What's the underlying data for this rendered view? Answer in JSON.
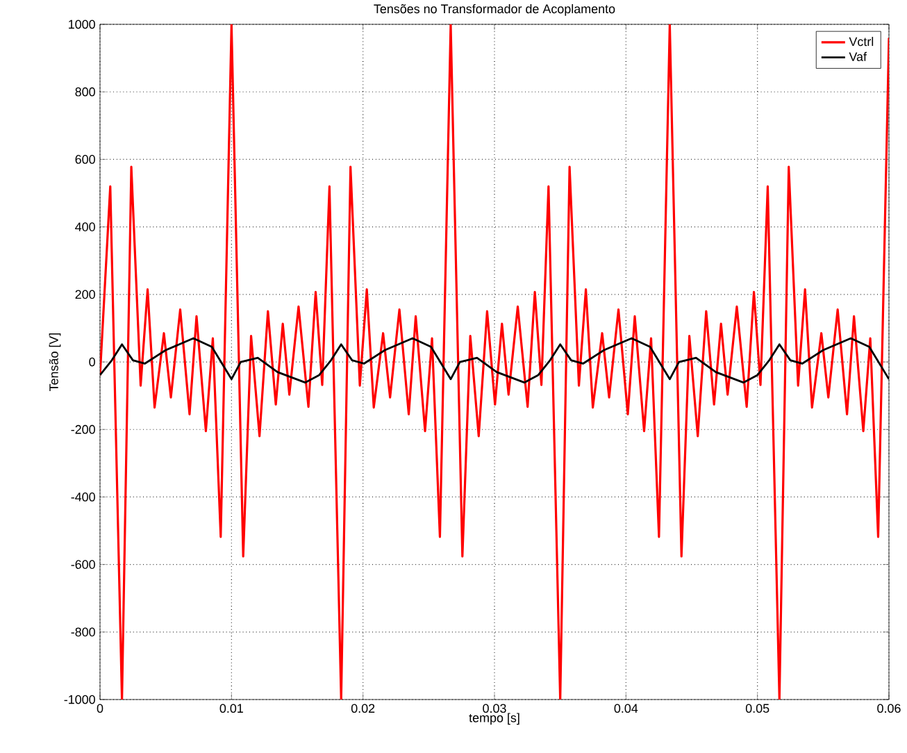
{
  "chart_data": {
    "type": "line",
    "title": "Tensões no Transformador de Acoplamento",
    "xlabel": "tempo [s]",
    "ylabel": "Tensão [V]",
    "xlim": [
      0,
      0.06
    ],
    "ylim": [
      -1000,
      1000
    ],
    "xticks": [
      0,
      0.01,
      0.02,
      0.03,
      0.04,
      0.05,
      0.06
    ],
    "yticks": [
      -1000,
      -800,
      -600,
      -400,
      -200,
      0,
      200,
      400,
      600,
      800,
      1000
    ],
    "grid": true,
    "legend": "top right",
    "marker": "none",
    "line_style": "solid",
    "series": [
      {
        "name": "Vctrl",
        "color": "#ff0000",
        "x": [
          0,
          0.00078,
          0.00167,
          0.00238,
          0.00309,
          0.00362,
          0.00415,
          0.00486,
          0.00539,
          0.0061,
          0.00681,
          0.00734,
          0.00805,
          0.00858,
          0.00918,
          0.01,
          0.01089,
          0.01149,
          0.01213,
          0.01277,
          0.01337,
          0.0139,
          0.0144,
          0.0151,
          0.01585,
          0.0164,
          0.0169,
          0.01745,
          0.01834,
          0.01905,
          0.01976,
          0.02029,
          0.02082,
          0.02153,
          0.02206,
          0.02277,
          0.02348,
          0.02401,
          0.02472,
          0.02525,
          0.02585,
          0.02667,
          0.02756,
          0.02816,
          0.0288,
          0.02944,
          0.03004,
          0.03057,
          0.03107,
          0.03177,
          0.03252,
          0.03307,
          0.03357,
          0.03411,
          0.035,
          0.03571,
          0.03642,
          0.03695,
          0.03748,
          0.03819,
          0.03872,
          0.03943,
          0.04014,
          0.04067,
          0.04138,
          0.04191,
          0.04251,
          0.04333,
          0.04422,
          0.04482,
          0.04546,
          0.0461,
          0.0467,
          0.04723,
          0.04773,
          0.04843,
          0.04918,
          0.04973,
          0.05023,
          0.05078,
          0.05167,
          0.05238,
          0.05309,
          0.05362,
          0.05415,
          0.05486,
          0.05539,
          0.0561,
          0.05681,
          0.05734,
          0.05805,
          0.05858,
          0.05918,
          0.06
        ],
        "values": [
          -40,
          520,
          -1000,
          578,
          -70,
          215,
          -135,
          85,
          -105,
          155,
          -155,
          135,
          -205,
          70,
          -518,
          1000,
          -576,
          77,
          -220,
          150,
          -126,
          113,
          -97,
          164,
          -133,
          207,
          -68,
          520,
          -1000,
          578,
          -70,
          215,
          -135,
          85,
          -105,
          155,
          -155,
          135,
          -205,
          70,
          -518,
          1000,
          -576,
          77,
          -220,
          150,
          -126,
          113,
          -97,
          164,
          -133,
          207,
          -68,
          520,
          -1000,
          578,
          -70,
          215,
          -135,
          85,
          -105,
          155,
          -155,
          135,
          -205,
          70,
          -518,
          1000,
          -576,
          77,
          -220,
          150,
          -126,
          113,
          -97,
          164,
          -133,
          207,
          -68,
          520,
          -1000,
          578,
          -70,
          215,
          -135,
          85,
          -105,
          155,
          -155,
          135,
          -205,
          70,
          -518,
          960
        ]
      },
      {
        "name": "Vaf",
        "color": "#000000",
        "x": [
          0,
          0.0009,
          0.00167,
          0.0025,
          0.0034,
          0.005,
          0.0071,
          0.0085,
          0.01,
          0.0107,
          0.012,
          0.0135,
          0.0156,
          0.01667,
          0.01757,
          0.01834,
          0.01917,
          0.02007,
          0.02167,
          0.02377,
          0.02517,
          0.02667,
          0.02737,
          0.02867,
          0.03017,
          0.03227,
          0.03333,
          0.03423,
          0.035,
          0.03583,
          0.03673,
          0.03833,
          0.04043,
          0.04183,
          0.04333,
          0.04403,
          0.04533,
          0.04683,
          0.04893,
          0.05,
          0.0509,
          0.05167,
          0.0525,
          0.0534,
          0.055,
          0.0571,
          0.0585,
          0.06
        ],
        "values": [
          -39,
          5,
          52,
          5,
          -5,
          35,
          70,
          45,
          -51,
          0,
          12,
          -30,
          -61,
          -39,
          5,
          52,
          5,
          -5,
          35,
          70,
          45,
          -51,
          0,
          12,
          -30,
          -61,
          -39,
          5,
          52,
          5,
          -5,
          35,
          70,
          45,
          -51,
          0,
          12,
          -30,
          -61,
          -39,
          5,
          52,
          5,
          -5,
          35,
          70,
          45,
          -51
        ]
      }
    ]
  }
}
